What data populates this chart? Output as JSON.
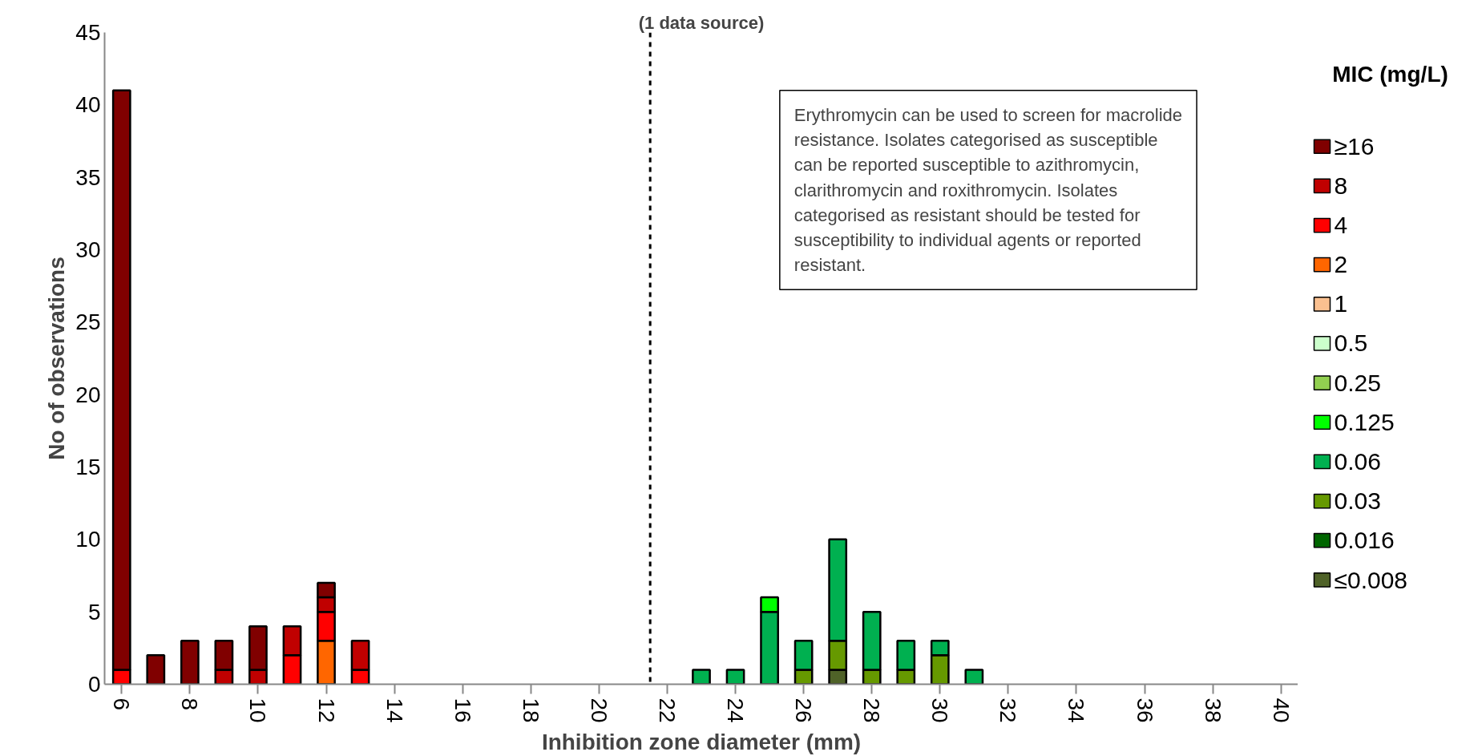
{
  "chart_data": {
    "type": "bar",
    "stacked": true,
    "title": "(1 data source)",
    "xlabel": "Inhibition zone diameter (mm)",
    "ylabel": "No of observations",
    "legend_title": "MIC (mg/L)",
    "legend": "right",
    "x": [
      6,
      7,
      8,
      9,
      10,
      11,
      12,
      13,
      23,
      24,
      25,
      26,
      27,
      28,
      29,
      30,
      31
    ],
    "xlim": [
      5.5,
      40.5
    ],
    "xticks": [
      6,
      8,
      10,
      12,
      14,
      16,
      18,
      20,
      22,
      24,
      26,
      28,
      30,
      32,
      34,
      36,
      38,
      40
    ],
    "ylim": [
      0,
      45
    ],
    "yticks": [
      0,
      5,
      10,
      15,
      20,
      25,
      30,
      35,
      40,
      45
    ],
    "grid": false,
    "series": [
      {
        "name": "≤0.008",
        "color": "#4f6228",
        "values": [
          null,
          null,
          null,
          null,
          null,
          null,
          null,
          null,
          null,
          null,
          null,
          null,
          1,
          null,
          null,
          null,
          null
        ]
      },
      {
        "name": "0.016",
        "color": "#006600",
        "values": [
          null,
          null,
          null,
          null,
          null,
          null,
          null,
          null,
          null,
          null,
          null,
          null,
          null,
          null,
          null,
          null,
          null
        ]
      },
      {
        "name": "0.03",
        "color": "#669900",
        "values": [
          null,
          null,
          null,
          null,
          null,
          null,
          null,
          null,
          null,
          null,
          null,
          1,
          2,
          1,
          1,
          2,
          null
        ]
      },
      {
        "name": "0.06",
        "color": "#00b050",
        "values": [
          null,
          null,
          null,
          null,
          null,
          null,
          null,
          null,
          1,
          1,
          5,
          2,
          7,
          4,
          2,
          1,
          1
        ]
      },
      {
        "name": "0.125",
        "color": "#00ff00",
        "values": [
          null,
          null,
          null,
          null,
          null,
          null,
          null,
          null,
          null,
          null,
          1,
          null,
          null,
          null,
          null,
          null,
          null
        ]
      },
      {
        "name": "0.25",
        "color": "#92d050",
        "values": [
          null,
          null,
          null,
          null,
          null,
          null,
          null,
          null,
          null,
          null,
          null,
          null,
          null,
          null,
          null,
          null,
          null
        ]
      },
      {
        "name": "0.5",
        "color": "#ccffcc",
        "values": [
          null,
          null,
          null,
          null,
          null,
          null,
          null,
          null,
          null,
          null,
          null,
          null,
          null,
          null,
          null,
          null,
          null
        ]
      },
      {
        "name": "1",
        "color": "#fac090",
        "values": [
          null,
          null,
          null,
          null,
          null,
          null,
          null,
          null,
          null,
          null,
          null,
          null,
          null,
          null,
          null,
          null,
          null
        ]
      },
      {
        "name": "2",
        "color": "#ff6600",
        "values": [
          null,
          null,
          null,
          null,
          null,
          null,
          3,
          null,
          null,
          null,
          null,
          null,
          null,
          null,
          null,
          null,
          null
        ]
      },
      {
        "name": "4",
        "color": "#ff0000",
        "values": [
          1,
          null,
          null,
          null,
          null,
          2,
          2,
          1,
          null,
          null,
          null,
          null,
          null,
          null,
          null,
          null,
          null
        ]
      },
      {
        "name": "8",
        "color": "#c00000",
        "values": [
          null,
          null,
          null,
          1,
          1,
          2,
          1,
          2,
          null,
          null,
          null,
          null,
          null,
          null,
          null,
          null,
          null
        ]
      },
      {
        "name": "≥16",
        "color": "#800000",
        "values": [
          40,
          2,
          3,
          2,
          3,
          null,
          1,
          null,
          null,
          null,
          null,
          null,
          null,
          null,
          null,
          null,
          null
        ]
      }
    ],
    "ref_lines": [
      {
        "axis": "x",
        "value": 21.5,
        "line_style": "dashed",
        "color": "#000000"
      }
    ],
    "annotations": [
      "Erythromycin can be used to screen for macrolide resistance. Isolates categorised as susceptible can be reported susceptible to azithromycin, clarithromycin and roxithromycin. Isolates categorised as resistant should be tested for susceptibility to individual agents or reported resistant."
    ]
  }
}
